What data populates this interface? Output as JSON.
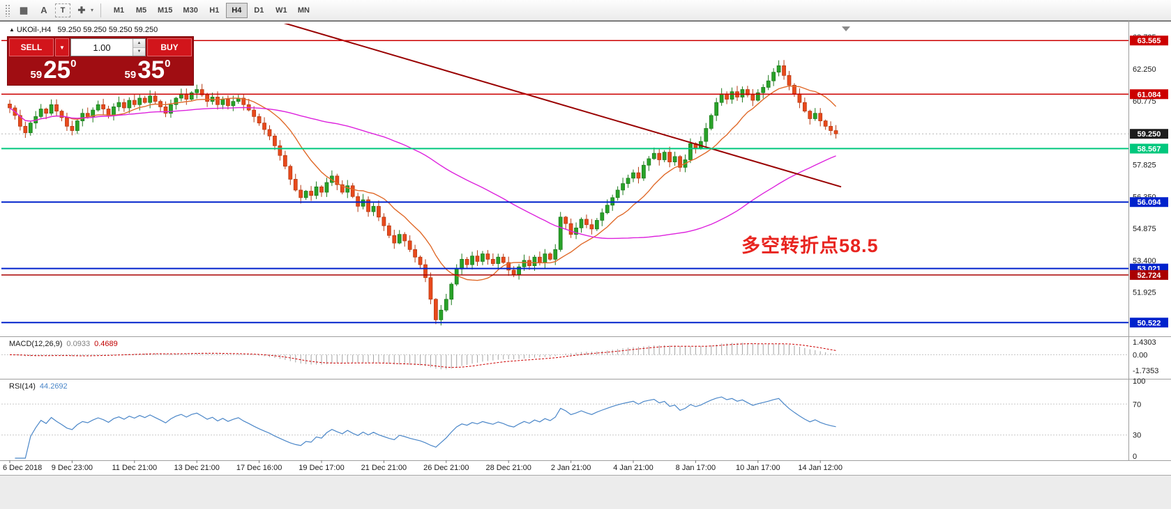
{
  "toolbar": {
    "timeframes": [
      "M1",
      "M5",
      "M15",
      "M30",
      "H1",
      "H4",
      "D1",
      "W1",
      "MN"
    ],
    "active_timeframe": "H4",
    "icon_glyphs": {
      "grid": "▦",
      "a": "A",
      "t": "T",
      "cursor": "✚",
      "caret": "▾"
    }
  },
  "trade_panel": {
    "sell_label": "SELL",
    "buy_label": "BUY",
    "volume": "1.00",
    "caret": "▼",
    "spin_up": "▲",
    "spin_down": "▼",
    "sell_price": {
      "small": "59",
      "big": "25",
      "sup": "0"
    },
    "buy_price": {
      "small": "59",
      "big": "35",
      "sup": "0"
    }
  },
  "chart_data": {
    "type": "candlestick",
    "header_marker": "▲",
    "header_symbol": "UKOil-,H4",
    "quote_header": "59.250 59.250 59.250 59.250",
    "candle_colors": {
      "up": "#28a228",
      "up_stroke": "#1d7a1d",
      "down": "#e8491c",
      "down_stroke": "#b53a12"
    },
    "first_open": 60.63,
    "closes": [
      60.45,
      60.1,
      59.6,
      59.3,
      59.75,
      60.05,
      60.4,
      60.2,
      60.6,
      60.3,
      60.0,
      59.6,
      59.4,
      59.85,
      60.2,
      60.05,
      60.35,
      60.6,
      60.4,
      60.1,
      60.5,
      60.7,
      60.45,
      60.8,
      60.6,
      60.9,
      60.7,
      61.0,
      60.75,
      60.5,
      60.2,
      60.6,
      60.9,
      61.1,
      60.85,
      61.15,
      61.3,
      61.05,
      60.75,
      60.95,
      60.6,
      60.85,
      60.55,
      60.75,
      60.9,
      60.6,
      60.35,
      60.05,
      59.75,
      59.45,
      59.15,
      58.7,
      58.25,
      57.75,
      57.15,
      56.65,
      56.3,
      56.6,
      56.4,
      56.8,
      56.55,
      57.0,
      57.3,
      56.9,
      56.55,
      56.85,
      56.35,
      55.9,
      56.2,
      55.65,
      55.9,
      55.4,
      55.0,
      54.55,
      54.2,
      54.6,
      54.3,
      53.9,
      53.55,
      53.2,
      52.6,
      51.6,
      50.65,
      51.1,
      51.6,
      52.3,
      53.0,
      53.45,
      53.2,
      53.6,
      53.35,
      53.7,
      53.45,
      53.25,
      53.55,
      53.3,
      52.95,
      52.75,
      53.1,
      53.4,
      53.15,
      53.55,
      53.3,
      53.7,
      53.45,
      53.9,
      55.4,
      55.1,
      54.6,
      54.9,
      55.3,
      55.05,
      54.85,
      55.25,
      55.6,
      55.95,
      56.3,
      56.65,
      56.95,
      57.2,
      57.45,
      57.2,
      57.8,
      58.1,
      58.35,
      58.05,
      58.4,
      57.95,
      58.2,
      57.7,
      58.05,
      58.8,
      58.6,
      58.9,
      59.5,
      60.1,
      60.7,
      61.1,
      60.85,
      61.2,
      60.95,
      61.3,
      61.05,
      60.8,
      61.15,
      61.4,
      61.7,
      62.1,
      62.4,
      61.95,
      61.5,
      61.1,
      60.7,
      60.3,
      59.95,
      60.2,
      59.85,
      59.6,
      59.4,
      59.25
    ],
    "spikes": [
      {
        "bar": 82,
        "low": 50.45
      },
      {
        "bar": 148,
        "high": 62.65
      }
    ],
    "x_labels": [
      {
        "bar": 0,
        "label": "6 Dec 2018"
      },
      {
        "bar": 12,
        "label": "9 Dec 23:00"
      },
      {
        "bar": 24,
        "label": "11 Dec 21:00"
      },
      {
        "bar": 36,
        "label": "13 Dec 21:00"
      },
      {
        "bar": 48,
        "label": "17 Dec 16:00"
      },
      {
        "bar": 60,
        "label": "19 Dec 17:00"
      },
      {
        "bar": 72,
        "label": "21 Dec 21:00"
      },
      {
        "bar": 84,
        "label": "26 Dec 21:00"
      },
      {
        "bar": 96,
        "label": "28 Dec 21:00"
      },
      {
        "bar": 108,
        "label": "2 Jan 21:00"
      },
      {
        "bar": 120,
        "label": "4 Jan 21:00"
      },
      {
        "bar": 132,
        "label": "8 Jan 17:00"
      },
      {
        "bar": 144,
        "label": "10 Jan 17:00"
      },
      {
        "bar": 156,
        "label": "14 Jan 12:00"
      }
    ],
    "price_axis": {
      "visible_range": [
        50.08,
        64.28
      ],
      "ticks": [
        {
          "v": 63.725,
          "t": "63.725"
        },
        {
          "v": 62.25,
          "t": "62.250"
        },
        {
          "v": 60.775,
          "t": "60.775"
        },
        {
          "v": 57.825,
          "t": "57.825"
        },
        {
          "v": 56.35,
          "t": "56.350"
        },
        {
          "v": 54.875,
          "t": "54.875"
        },
        {
          "v": 53.4,
          "t": "53.400"
        },
        {
          "v": 51.925,
          "t": "51.925"
        },
        {
          "v": 50.45,
          "t": "50.450"
        }
      ]
    },
    "levels": [
      {
        "price": 63.565,
        "label": "63.565",
        "color": "#cc0000",
        "width": 1.5
      },
      {
        "price": 61.084,
        "label": "61.084",
        "color": "#cc0000",
        "width": 1.5
      },
      {
        "price": 58.567,
        "label": "58.567",
        "color": "#00c77d",
        "width": 2
      },
      {
        "price": 56.094,
        "label": "56.094",
        "color": "#0022cc",
        "width": 2
      },
      {
        "price": 53.021,
        "label": "53.021",
        "color": "#0022cc",
        "width": 2
      },
      {
        "price": 52.724,
        "label": "52.724",
        "color": "#aa0000",
        "width": 1.5
      },
      {
        "price": 50.522,
        "label": "50.522",
        "color": "#0022cc",
        "width": 2
      }
    ],
    "current_price": {
      "value": 59.25,
      "label": "59.250",
      "line_color": "#b6b6b6",
      "badge_color": "#1c1c1c"
    },
    "trendline": {
      "from": {
        "bar": 51,
        "price": 64.5
      },
      "to": {
        "bar": 160,
        "price": 56.8
      },
      "color": "#990000",
      "width": 2
    },
    "moving_averages": [
      {
        "name": "ma-fast",
        "period": 12,
        "color": "#e06a2a"
      },
      {
        "name": "ma-slow",
        "period": 60,
        "color": "#dd22dd"
      }
    ],
    "annotation": {
      "text": "多空转折点58.5",
      "color": "#e8241f"
    },
    "indicators": [
      {
        "name": "MACD",
        "label": "MACD(12,26,9)",
        "values": [
          "0.0933",
          "0.4689"
        ],
        "scale": [
          {
            "v": 1.4303,
            "t": "1.4303"
          },
          {
            "v": 0,
            "t": "0.00"
          },
          {
            "v": -1.7353,
            "t": "-1.7353"
          }
        ],
        "histogram_color": "#a4a4a4",
        "signal_color": "#cc0000"
      },
      {
        "name": "RSI",
        "label": "RSI(14)",
        "values": [
          "44.2692"
        ],
        "scale": [
          {
            "v": 100,
            "t": "100"
          },
          {
            "v": 70,
            "t": "70"
          },
          {
            "v": 30,
            "t": "30"
          },
          {
            "v": 0,
            "t": "0"
          }
        ],
        "levels": [
          70,
          30
        ],
        "line_color": "#4a86c8"
      }
    ]
  }
}
